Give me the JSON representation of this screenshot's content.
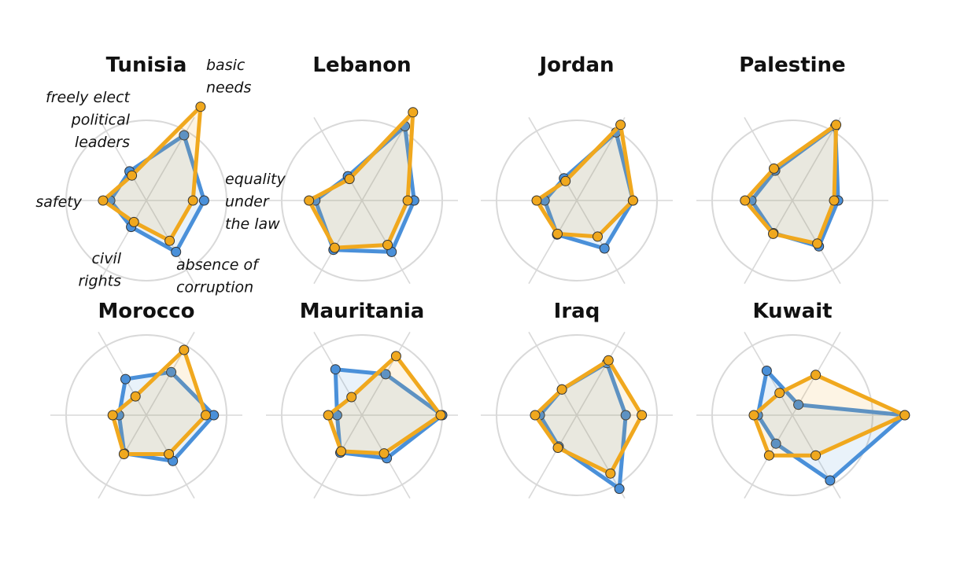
{
  "chart_data": {
    "type": "radar",
    "axes": [
      "basic needs",
      "equality under the law",
      "absence of corruption",
      "civil rights",
      "safety",
      "freely elect political leaders"
    ],
    "axis_label_lines": [
      [
        "basic",
        "needs"
      ],
      [
        "equality",
        "under",
        "the law"
      ],
      [
        "absence of",
        "corruption"
      ],
      [
        "civil",
        "rights"
      ],
      [
        "safety"
      ],
      [
        "freely elect",
        "political",
        "leaders"
      ]
    ],
    "rmax": 1,
    "series_colors": {
      "blue": "#4a90d9",
      "orange": "#f0a81e"
    },
    "panels": [
      {
        "title": "Tunisia",
        "blue": [
          0.94,
          0.72,
          0.74,
          0.38,
          0.45,
          0.42
        ],
        "orange": [
          1.35,
          0.58,
          0.58,
          0.31,
          0.54,
          0.36
        ]
      },
      {
        "title": "Lebanon",
        "blue": [
          1.07,
          0.65,
          0.74,
          0.71,
          0.58,
          0.35
        ],
        "orange": [
          1.27,
          0.57,
          0.64,
          0.68,
          0.66,
          0.31
        ]
      },
      {
        "title": "Jordan",
        "blue": [
          0.98,
          0.7,
          0.69,
          0.49,
          0.4,
          0.32
        ],
        "orange": [
          1.09,
          0.7,
          0.52,
          0.48,
          0.5,
          0.28
        ]
      },
      {
        "title": "Palestine",
        "blue": [
          1.07,
          0.57,
          0.66,
          0.47,
          0.51,
          0.43
        ],
        "orange": [
          1.09,
          0.52,
          0.62,
          0.48,
          0.59,
          0.46
        ]
      },
      {
        "title": "Morocco",
        "blue": [
          0.62,
          0.84,
          0.66,
          0.55,
          0.34,
          0.52
        ],
        "orange": [
          0.94,
          0.74,
          0.56,
          0.56,
          0.42,
          0.27
        ]
      },
      {
        "title": "Mauritania",
        "blue": [
          0.59,
          1.0,
          0.62,
          0.54,
          0.31,
          0.66
        ],
        "orange": [
          0.85,
          0.98,
          0.55,
          0.52,
          0.42,
          0.26
        ]
      },
      {
        "title": "Iraq",
        "blue": [
          0.75,
          0.61,
          1.06,
          0.45,
          0.46,
          0.37
        ],
        "orange": [
          0.79,
          0.81,
          0.84,
          0.47,
          0.52,
          0.37
        ]
      },
      {
        "title": "Kuwait",
        "blue": [
          0.15,
          1.4,
          0.94,
          0.41,
          0.43,
          0.64
        ],
        "orange": [
          0.58,
          1.4,
          0.58,
          0.58,
          0.48,
          0.32
        ]
      }
    ]
  }
}
